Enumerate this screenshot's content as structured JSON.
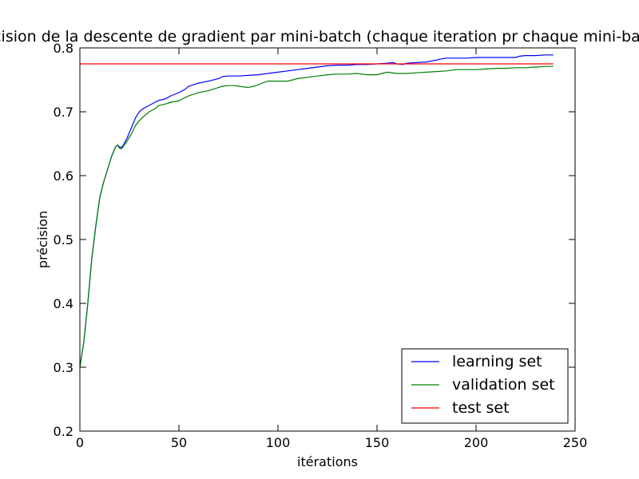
{
  "chart_data": {
    "type": "line",
    "title": "Précision de la descente de gradient par mini-batch (chaque iteration pr chaque mini-batch)",
    "xlabel": "itérations",
    "ylabel": "précision",
    "xlim": [
      0,
      250
    ],
    "ylim": [
      0.2,
      0.8
    ],
    "xticks": [
      "0",
      "50",
      "100",
      "150",
      "200",
      "250"
    ],
    "yticks": [
      "0.2",
      "0.3",
      "0.4",
      "0.5",
      "0.6",
      "0.7",
      "0.8"
    ],
    "grid": false,
    "legend_position": "lower-right",
    "series": [
      {
        "name": "learning set",
        "color": "#0000ff",
        "x": [
          0,
          2,
          4,
          6,
          8,
          10,
          12,
          14,
          16,
          18,
          19,
          20,
          21,
          22,
          24,
          26,
          28,
          30,
          32,
          35,
          38,
          40,
          43,
          46,
          50,
          53,
          55,
          58,
          60,
          65,
          70,
          72,
          75,
          80,
          85,
          90,
          95,
          100,
          105,
          110,
          115,
          120,
          125,
          130,
          135,
          140,
          145,
          150,
          155,
          158,
          160,
          163,
          165,
          170,
          175,
          180,
          183,
          185,
          190,
          195,
          200,
          205,
          210,
          215,
          220,
          222,
          225,
          230,
          235,
          239
        ],
        "y": [
          0.3,
          0.34,
          0.4,
          0.47,
          0.52,
          0.565,
          0.59,
          0.61,
          0.63,
          0.645,
          0.648,
          0.645,
          0.644,
          0.648,
          0.66,
          0.675,
          0.69,
          0.7,
          0.705,
          0.71,
          0.715,
          0.718,
          0.72,
          0.725,
          0.73,
          0.735,
          0.74,
          0.743,
          0.745,
          0.748,
          0.752,
          0.755,
          0.756,
          0.756,
          0.757,
          0.758,
          0.76,
          0.762,
          0.764,
          0.766,
          0.768,
          0.77,
          0.772,
          0.773,
          0.773,
          0.774,
          0.774,
          0.775,
          0.776,
          0.777,
          0.775,
          0.774,
          0.776,
          0.777,
          0.778,
          0.781,
          0.783,
          0.784,
          0.784,
          0.784,
          0.785,
          0.785,
          0.785,
          0.785,
          0.785,
          0.787,
          0.788,
          0.788,
          0.789,
          0.789
        ]
      },
      {
        "name": "validation set",
        "color": "#008000",
        "x": [
          0,
          2,
          4,
          6,
          8,
          10,
          12,
          14,
          16,
          18,
          19,
          20,
          21,
          22,
          24,
          26,
          28,
          30,
          32,
          35,
          38,
          40,
          43,
          46,
          50,
          53,
          55,
          58,
          60,
          65,
          70,
          72,
          75,
          78,
          80,
          85,
          90,
          92,
          95,
          100,
          105,
          110,
          115,
          120,
          125,
          130,
          135,
          140,
          145,
          150,
          155,
          160,
          165,
          170,
          175,
          180,
          185,
          190,
          195,
          200,
          205,
          210,
          215,
          220,
          225,
          230,
          235,
          239
        ],
        "y": [
          0.3,
          0.34,
          0.4,
          0.47,
          0.52,
          0.565,
          0.59,
          0.61,
          0.63,
          0.645,
          0.648,
          0.643,
          0.642,
          0.646,
          0.655,
          0.665,
          0.678,
          0.686,
          0.692,
          0.7,
          0.705,
          0.71,
          0.712,
          0.715,
          0.717,
          0.722,
          0.725,
          0.728,
          0.73,
          0.733,
          0.738,
          0.74,
          0.741,
          0.741,
          0.74,
          0.738,
          0.742,
          0.745,
          0.748,
          0.748,
          0.748,
          0.752,
          0.754,
          0.756,
          0.758,
          0.759,
          0.759,
          0.76,
          0.758,
          0.758,
          0.762,
          0.76,
          0.76,
          0.761,
          0.762,
          0.763,
          0.764,
          0.766,
          0.766,
          0.766,
          0.767,
          0.768,
          0.768,
          0.769,
          0.769,
          0.77,
          0.771,
          0.771
        ]
      },
      {
        "name": "test set",
        "color": "#ff0000",
        "x": [
          0,
          239
        ],
        "y": [
          0.775,
          0.775
        ]
      }
    ]
  }
}
